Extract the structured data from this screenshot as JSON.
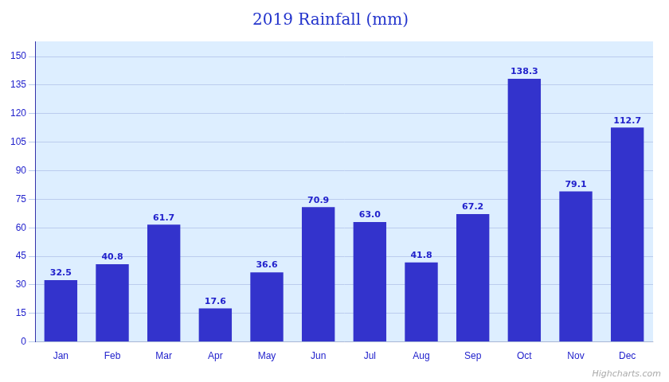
{
  "chart_data": {
    "type": "bar",
    "title": "2019 Rainfall (mm)",
    "categories": [
      "Jan",
      "Feb",
      "Mar",
      "Apr",
      "May",
      "Jun",
      "Jul",
      "Aug",
      "Sep",
      "Oct",
      "Nov",
      "Dec"
    ],
    "values": [
      32.5,
      40.8,
      61.7,
      17.6,
      36.6,
      70.9,
      63.0,
      41.8,
      67.2,
      138.3,
      79.1,
      112.7
    ],
    "value_labels": [
      "32.5",
      "40.8",
      "61.7",
      "17.6",
      "36.6",
      "70.9",
      "63.0",
      "41.8",
      "67.2",
      "138.3",
      "79.1",
      "112.7"
    ],
    "color": "#3333cc",
    "ylim": [
      0,
      158
    ],
    "yticks": [
      0,
      15,
      30,
      45,
      60,
      75,
      90,
      105,
      120,
      135,
      150
    ],
    "grid": true,
    "data_labels": true,
    "annotations": [
      "Highcharts.com"
    ]
  }
}
